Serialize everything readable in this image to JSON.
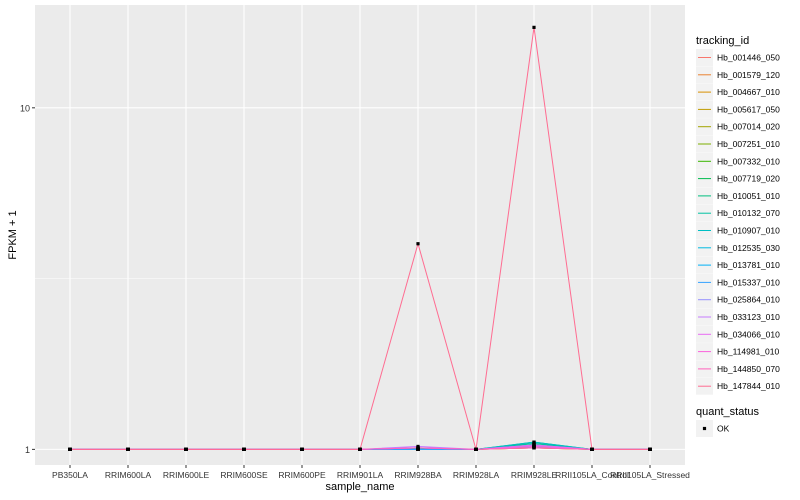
{
  "chart_data": {
    "type": "line",
    "xlabel": "sample_name",
    "ylabel": "FPKM + 1",
    "y_scale": "log10",
    "ylim": [
      0.9,
      20
    ],
    "y_ticks": [
      1,
      10
    ],
    "y_tick_labels": [
      "1",
      "10"
    ],
    "grid": true,
    "categories": [
      "PB350LA",
      "RRIM600LA",
      "RRIM600LE",
      "RRIM600SE",
      "RRIM600PE",
      "RRIM901LA",
      "RRIM928BA",
      "RRIM928LA",
      "RRIM928LE",
      "RRII105LA_Control",
      "RRII105LA_Stressed"
    ],
    "series": [
      {
        "name": "Hb_001446_050",
        "color": "#F8766D",
        "values": [
          1,
          1,
          1,
          1,
          1,
          1,
          1,
          1,
          1.01,
          1,
          1
        ]
      },
      {
        "name": "Hb_001579_120",
        "color": "#EA8331",
        "values": [
          1,
          1,
          1,
          1,
          1,
          1,
          1,
          1,
          1.01,
          1,
          1
        ]
      },
      {
        "name": "Hb_004667_010",
        "color": "#D89000",
        "values": [
          1,
          1,
          1,
          1,
          1,
          1,
          1,
          1,
          1.02,
          1,
          1
        ]
      },
      {
        "name": "Hb_005617_050",
        "color": "#C09B00",
        "values": [
          1,
          1,
          1,
          1,
          1,
          1,
          1,
          1,
          1.01,
          1,
          1
        ]
      },
      {
        "name": "Hb_007014_020",
        "color": "#A3A500",
        "values": [
          1,
          1,
          1,
          1,
          1,
          1,
          1,
          1,
          1.02,
          1,
          1
        ]
      },
      {
        "name": "Hb_007251_010",
        "color": "#7CAE00",
        "values": [
          1,
          1,
          1,
          1,
          1,
          1,
          1.01,
          1,
          1.02,
          1,
          1
        ]
      },
      {
        "name": "Hb_007332_010",
        "color": "#39B600",
        "values": [
          1,
          1,
          1,
          1,
          1,
          1,
          1,
          1,
          1.03,
          1,
          1
        ]
      },
      {
        "name": "Hb_007719_020",
        "color": "#00BB4E",
        "values": [
          1,
          1,
          1,
          1,
          1,
          1,
          1,
          1,
          1.04,
          1,
          1
        ]
      },
      {
        "name": "Hb_010051_010",
        "color": "#00BF7D",
        "values": [
          1,
          1,
          1,
          1,
          1,
          1,
          1,
          1,
          1.05,
          1,
          1
        ]
      },
      {
        "name": "Hb_010132_070",
        "color": "#00C1A3",
        "values": [
          1,
          1,
          1,
          1,
          1,
          1,
          1,
          1,
          1.04,
          1,
          1
        ]
      },
      {
        "name": "Hb_010907_010",
        "color": "#00BFC4",
        "values": [
          1,
          1,
          1,
          1,
          1,
          1,
          1,
          1,
          1.05,
          1,
          1
        ]
      },
      {
        "name": "Hb_012535_030",
        "color": "#00BAE0",
        "values": [
          1,
          1,
          1,
          1,
          1,
          1,
          1,
          1,
          1.03,
          1,
          1
        ]
      },
      {
        "name": "Hb_013781_010",
        "color": "#00B0F6",
        "values": [
          1,
          1,
          1,
          1,
          1,
          1,
          1,
          1,
          1.02,
          1,
          1
        ]
      },
      {
        "name": "Hb_015337_010",
        "color": "#35A2FF",
        "values": [
          1,
          1,
          1,
          1,
          1,
          1,
          1,
          1,
          1.02,
          1,
          1
        ]
      },
      {
        "name": "Hb_025864_010",
        "color": "#9590FF",
        "values": [
          1,
          1,
          1,
          1,
          1,
          1,
          1.01,
          1,
          1.03,
          1,
          1
        ]
      },
      {
        "name": "Hb_033123_010",
        "color": "#C77CFF",
        "values": [
          1,
          1,
          1,
          1,
          1,
          1,
          1.02,
          1,
          1.02,
          1,
          1
        ]
      },
      {
        "name": "Hb_034066_010",
        "color": "#E76BF3",
        "values": [
          1,
          1,
          1,
          1,
          1,
          1,
          1.01,
          1,
          1.03,
          1,
          1
        ]
      },
      {
        "name": "Hb_114981_010",
        "color": "#FA62DB",
        "values": [
          1,
          1,
          1,
          1,
          1,
          1,
          1.01,
          1,
          1.02,
          1,
          1
        ]
      },
      {
        "name": "Hb_144850_070",
        "color": "#FF62BC",
        "values": [
          1,
          1,
          1,
          1,
          1,
          1,
          1.01,
          1,
          1.01,
          1,
          1
        ]
      },
      {
        "name": "Hb_147844_010",
        "color": "#FF6C91",
        "values": [
          1,
          1,
          1,
          1,
          1,
          1,
          4.0,
          1,
          17.2,
          1,
          1
        ]
      }
    ],
    "legend": {
      "placement": "right",
      "title": "tracking_id",
      "shape_title": "quant_status",
      "shape_entries": [
        "OK"
      ]
    },
    "colors": {
      "panel_background": "#EBEBEB",
      "grid_line": "#FFFFFF",
      "point": "#000000",
      "text": "#333333"
    }
  }
}
